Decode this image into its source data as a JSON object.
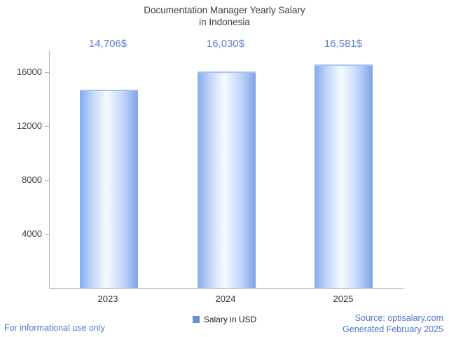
{
  "title": {
    "line1": "Documentation Manager Yearly Salary",
    "line2": "in Indonesia"
  },
  "chart_data": {
    "type": "bar",
    "title": "Documentation Manager Yearly Salary in Indonesia",
    "categories": [
      "2023",
      "2024",
      "2025"
    ],
    "values": [
      14706,
      16030,
      16581
    ],
    "value_labels": [
      "14,706$",
      "16,030$",
      "16,581$"
    ],
    "series_name": "Salary in USD",
    "xlabel": "",
    "ylabel": "",
    "ylim": [
      0,
      17600
    ],
    "yticks": [
      4000,
      8000,
      12000,
      16000
    ],
    "ytick_labels": [
      "4000",
      "8000",
      "12000",
      "16000"
    ],
    "grid": false,
    "legend_position": "bottom"
  },
  "legend": {
    "label": "Salary in USD"
  },
  "footer": {
    "left": "For informational use only",
    "source": "Source: optisalary.com",
    "generated": "Generated February 2025"
  },
  "colors": {
    "accent_text": "#5b7ed7",
    "footer_text": "#4f74d2",
    "bar_edge": "#86abef",
    "bar_center": "#f6faff",
    "legend_square": "#6a8edc",
    "axis": "#b7b7b7",
    "title_text": "#3d3d3d"
  }
}
